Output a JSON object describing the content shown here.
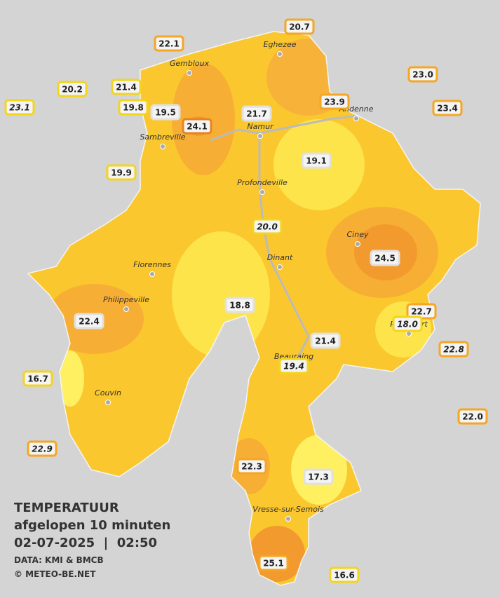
{
  "title": "TEMPERATUUR",
  "subtitle": "afgelopen 10 minuten",
  "datetime": "02-07-2025  |  02:50",
  "source": "DATA: KMI & BMCB",
  "copyright": "© METEO-BE.NET",
  "places": [
    "Eghezee",
    "Gembloux",
    "Andenne",
    "Namur",
    "Sambreville",
    "Profondeville",
    "Ciney",
    "Dinant",
    "Florennes",
    "Philippeville",
    "Rochefort",
    "Beauraing",
    "Couvin",
    "Vresse-sur-Semois"
  ],
  "stations": [
    "20.7",
    "22.1",
    "23.0",
    "20.2",
    "21.4",
    "23.1",
    "19.8",
    "19.5",
    "24.1",
    "21.7",
    "23.9",
    "23.4",
    "19.1",
    "19.9",
    "20.0",
    "24.5",
    "18.8",
    "22.4",
    "22.7",
    "18.0",
    "21.4",
    "22.8",
    "19.4",
    "16.7",
    "22.0",
    "22.9",
    "22.3",
    "17.3",
    "25.1",
    "16.6"
  ]
}
